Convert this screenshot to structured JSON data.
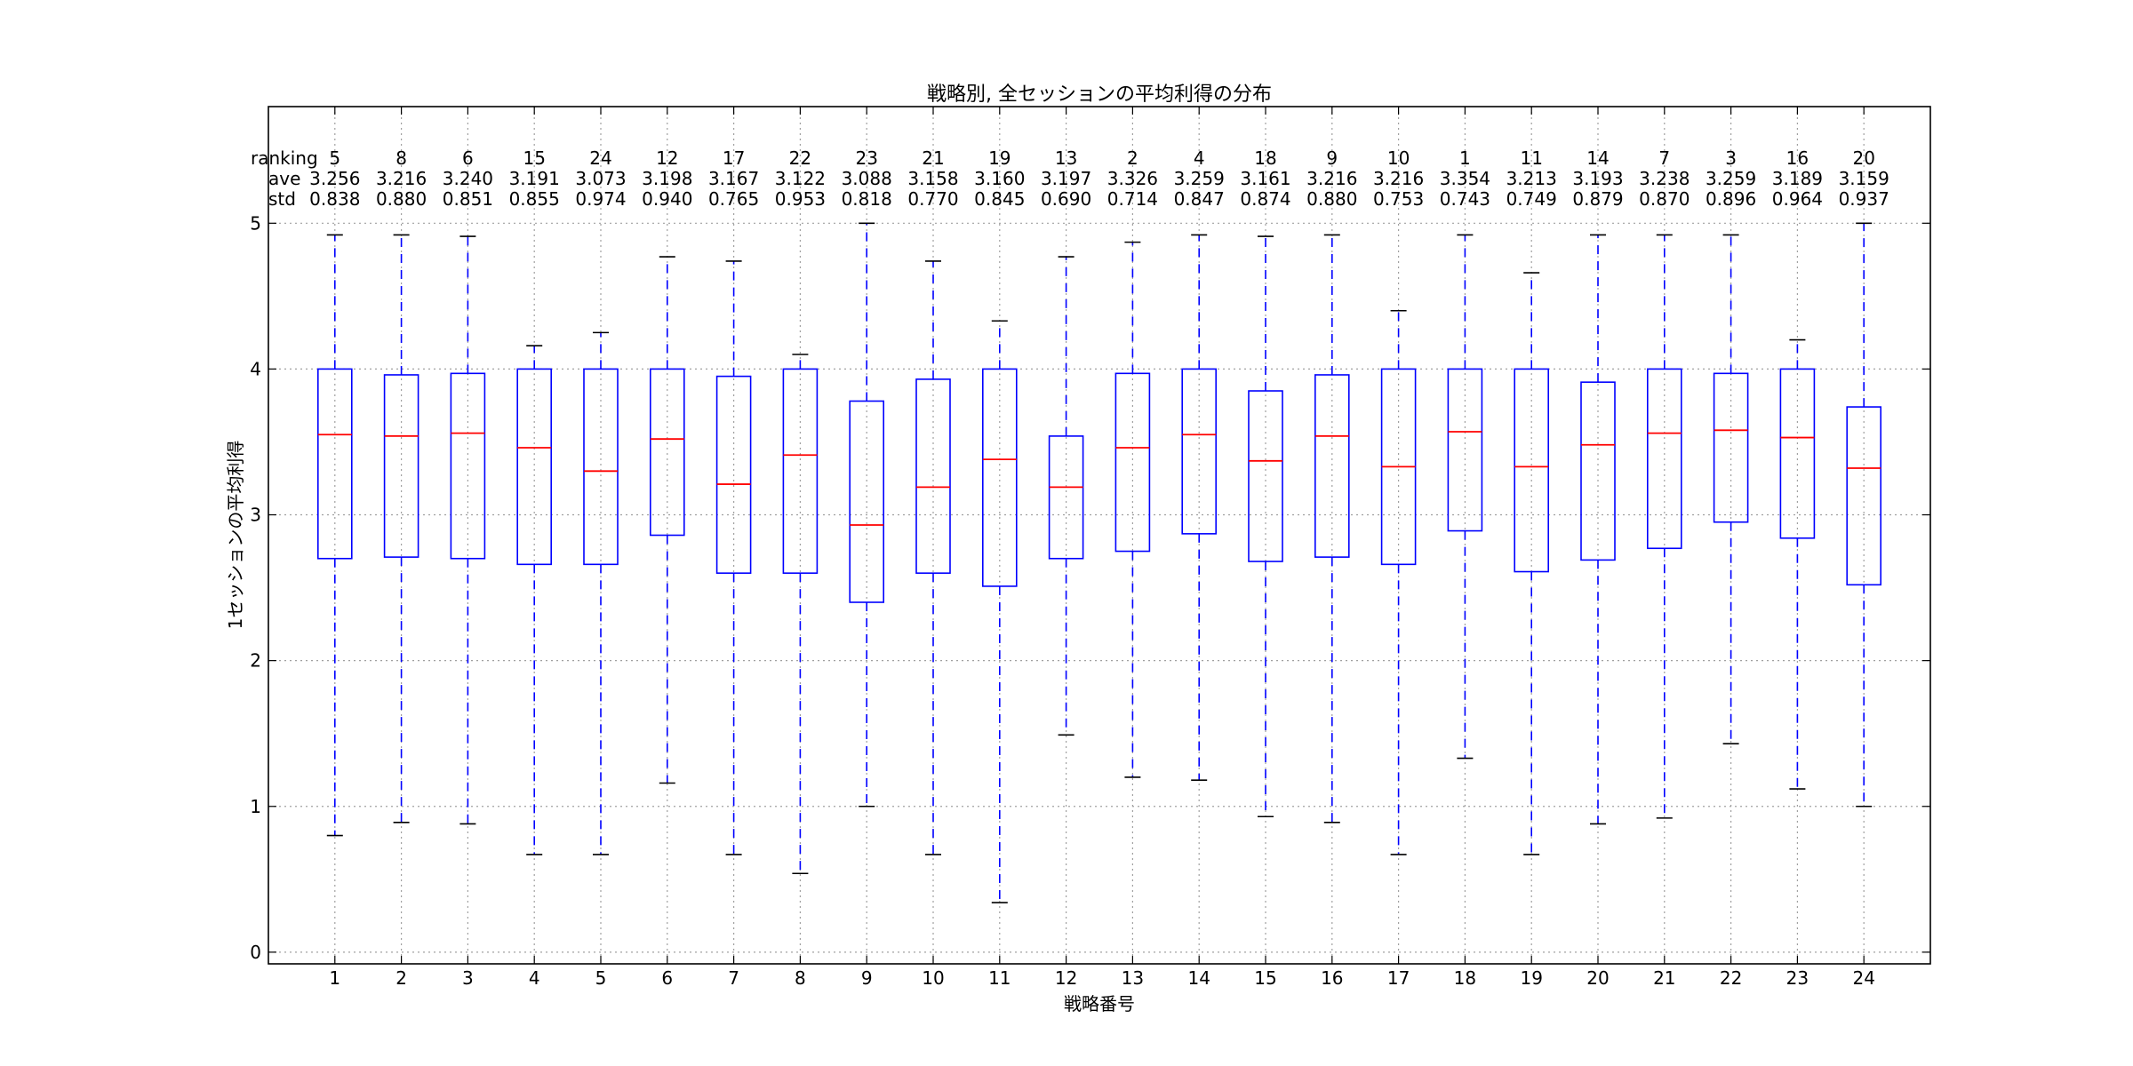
{
  "chart_data": {
    "type": "boxplot",
    "title": "戦略別, 全セッションの平均利得の分布",
    "xlabel": "戦略番号",
    "ylabel": "1セッションの平均利得",
    "ylim": [
      -0.08,
      5.8
    ],
    "xlim": [
      0,
      25
    ],
    "yticks": [
      "0",
      "1",
      "2",
      "3",
      "4",
      "5"
    ],
    "categories": [
      "1",
      "2",
      "3",
      "4",
      "5",
      "6",
      "7",
      "8",
      "9",
      "10",
      "11",
      "12",
      "13",
      "14",
      "15",
      "16",
      "17",
      "18",
      "19",
      "20",
      "21",
      "22",
      "23",
      "24"
    ],
    "grid": true,
    "colors": {
      "box": "#0000ff",
      "median": "#ff0000",
      "whisker": "#0000ff",
      "cap": "#000000"
    },
    "stat_labels": {
      "ranking": "ranking",
      "ave": "ave",
      "std": "std"
    },
    "ranking": [
      "5",
      "8",
      "6",
      "15",
      "24",
      "12",
      "17",
      "22",
      "23",
      "21",
      "19",
      "13",
      "2",
      "4",
      "18",
      "9",
      "10",
      "1",
      "11",
      "14",
      "7",
      "3",
      "16",
      "20"
    ],
    "ave": [
      "3.256",
      "3.216",
      "3.240",
      "3.191",
      "3.073",
      "3.198",
      "3.167",
      "3.122",
      "3.088",
      "3.158",
      "3.160",
      "3.197",
      "3.326",
      "3.259",
      "3.161",
      "3.216",
      "3.216",
      "3.354",
      "3.213",
      "3.193",
      "3.238",
      "3.259",
      "3.189",
      "3.159"
    ],
    "std": [
      "0.838",
      "0.880",
      "0.851",
      "0.855",
      "0.974",
      "0.940",
      "0.765",
      "0.953",
      "0.818",
      "0.770",
      "0.845",
      "0.690",
      "0.714",
      "0.847",
      "0.874",
      "0.880",
      "0.753",
      "0.743",
      "0.749",
      "0.879",
      "0.870",
      "0.896",
      "0.964",
      "0.937"
    ],
    "boxes": [
      {
        "whislo": 0.8,
        "q1": 2.7,
        "med": 3.55,
        "q3": 4.0,
        "whishi": 4.92
      },
      {
        "whislo": 0.89,
        "q1": 2.71,
        "med": 3.54,
        "q3": 3.96,
        "whishi": 4.92
      },
      {
        "whislo": 0.88,
        "q1": 2.7,
        "med": 3.56,
        "q3": 3.97,
        "whishi": 4.91
      },
      {
        "whislo": 0.67,
        "q1": 2.66,
        "med": 3.46,
        "q3": 4.0,
        "whishi": 4.16
      },
      {
        "whislo": 0.67,
        "q1": 2.66,
        "med": 3.3,
        "q3": 4.0,
        "whishi": 4.25
      },
      {
        "whislo": 1.16,
        "q1": 2.86,
        "med": 3.52,
        "q3": 4.0,
        "whishi": 4.77
      },
      {
        "whislo": 0.67,
        "q1": 2.6,
        "med": 3.21,
        "q3": 3.95,
        "whishi": 4.74
      },
      {
        "whislo": 0.54,
        "q1": 2.6,
        "med": 3.41,
        "q3": 4.0,
        "whishi": 4.1
      },
      {
        "whislo": 1.0,
        "q1": 2.4,
        "med": 2.93,
        "q3": 3.78,
        "whishi": 5.0
      },
      {
        "whislo": 0.67,
        "q1": 2.6,
        "med": 3.19,
        "q3": 3.93,
        "whishi": 4.74
      },
      {
        "whislo": 0.34,
        "q1": 2.51,
        "med": 3.38,
        "q3": 4.0,
        "whishi": 4.33
      },
      {
        "whislo": 1.49,
        "q1": 2.7,
        "med": 3.19,
        "q3": 3.54,
        "whishi": 4.77
      },
      {
        "whislo": 1.2,
        "q1": 2.75,
        "med": 3.46,
        "q3": 3.97,
        "whishi": 4.87
      },
      {
        "whislo": 1.18,
        "q1": 2.87,
        "med": 3.55,
        "q3": 4.0,
        "whishi": 4.92
      },
      {
        "whislo": 0.93,
        "q1": 2.68,
        "med": 3.37,
        "q3": 3.85,
        "whishi": 4.91
      },
      {
        "whislo": 0.89,
        "q1": 2.71,
        "med": 3.54,
        "q3": 3.96,
        "whishi": 4.92
      },
      {
        "whislo": 0.67,
        "q1": 2.66,
        "med": 3.33,
        "q3": 4.0,
        "whishi": 4.4
      },
      {
        "whislo": 1.33,
        "q1": 2.89,
        "med": 3.57,
        "q3": 4.0,
        "whishi": 4.92
      },
      {
        "whislo": 0.67,
        "q1": 2.61,
        "med": 3.33,
        "q3": 4.0,
        "whishi": 4.66
      },
      {
        "whislo": 0.88,
        "q1": 2.69,
        "med": 3.48,
        "q3": 3.91,
        "whishi": 4.92
      },
      {
        "whislo": 0.92,
        "q1": 2.77,
        "med": 3.56,
        "q3": 4.0,
        "whishi": 4.92
      },
      {
        "whislo": 1.43,
        "q1": 2.95,
        "med": 3.58,
        "q3": 3.97,
        "whishi": 4.92
      },
      {
        "whislo": 1.12,
        "q1": 2.84,
        "med": 3.53,
        "q3": 4.0,
        "whishi": 4.2
      },
      {
        "whislo": 1.0,
        "q1": 2.52,
        "med": 3.32,
        "q3": 3.74,
        "whishi": 5.0
      }
    ]
  }
}
